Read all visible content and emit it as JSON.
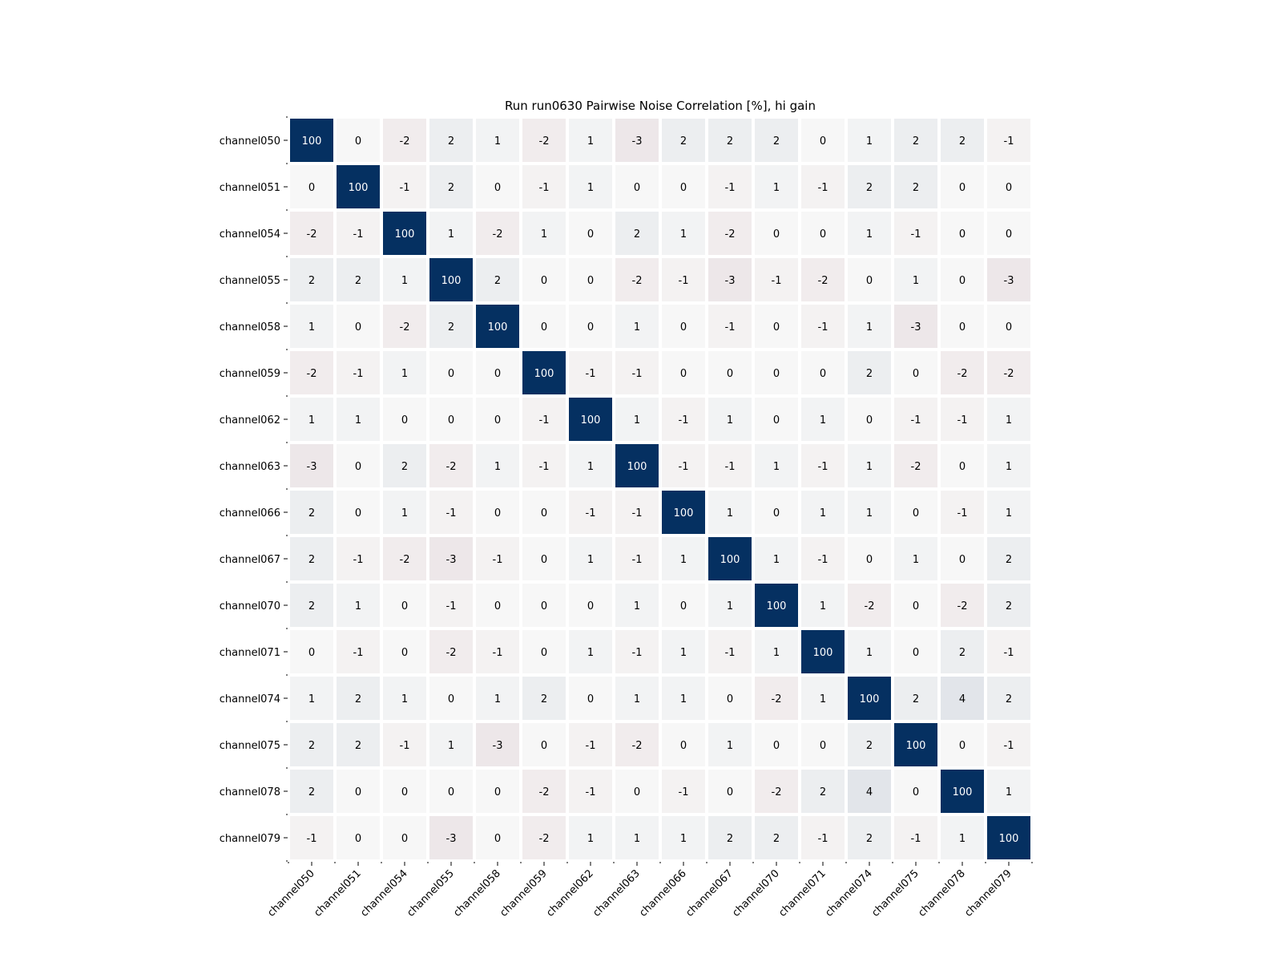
{
  "chart_data": {
    "type": "heatmap",
    "title": "Run run0630 Pairwise Noise Correlation [%], hi gain",
    "xlabel": "",
    "ylabel": "",
    "row_labels": [
      "channel050",
      "channel051",
      "channel054",
      "channel055",
      "channel058",
      "channel059",
      "channel062",
      "channel063",
      "channel066",
      "channel067",
      "channel070",
      "channel071",
      "channel074",
      "channel075",
      "channel078",
      "channel079"
    ],
    "col_labels": [
      "channel050",
      "channel051",
      "channel054",
      "channel055",
      "channel058",
      "channel059",
      "channel062",
      "channel063",
      "channel066",
      "channel067",
      "channel070",
      "channel071",
      "channel074",
      "channel075",
      "channel078",
      "channel079"
    ],
    "values": [
      [
        100,
        0,
        -2,
        2,
        1,
        -2,
        1,
        -3,
        2,
        2,
        2,
        0,
        1,
        2,
        2,
        -1
      ],
      [
        0,
        100,
        -1,
        2,
        0,
        -1,
        1,
        0,
        0,
        -1,
        1,
        -1,
        2,
        2,
        0,
        0
      ],
      [
        -2,
        -1,
        100,
        1,
        -2,
        1,
        0,
        2,
        1,
        -2,
        0,
        0,
        1,
        -1,
        0,
        0
      ],
      [
        2,
        2,
        1,
        100,
        2,
        0,
        0,
        -2,
        -1,
        -3,
        -1,
        -2,
        0,
        1,
        0,
        -3
      ],
      [
        1,
        0,
        -2,
        2,
        100,
        0,
        0,
        1,
        0,
        -1,
        0,
        -1,
        1,
        -3,
        0,
        0
      ],
      [
        -2,
        -1,
        1,
        0,
        0,
        100,
        -1,
        -1,
        0,
        0,
        0,
        0,
        2,
        0,
        -2,
        -2
      ],
      [
        1,
        1,
        0,
        0,
        0,
        -1,
        100,
        1,
        -1,
        1,
        0,
        1,
        0,
        -1,
        -1,
        1
      ],
      [
        -3,
        0,
        2,
        -2,
        1,
        -1,
        1,
        100,
        -1,
        -1,
        1,
        -1,
        1,
        -2,
        0,
        1
      ],
      [
        2,
        0,
        1,
        -1,
        0,
        0,
        -1,
        -1,
        100,
        1,
        0,
        1,
        1,
        0,
        -1,
        1
      ],
      [
        2,
        -1,
        -2,
        -3,
        -1,
        0,
        1,
        -1,
        1,
        100,
        1,
        -1,
        0,
        1,
        0,
        2
      ],
      [
        2,
        1,
        0,
        -1,
        0,
        0,
        0,
        1,
        0,
        1,
        100,
        1,
        -2,
        0,
        -2,
        2
      ],
      [
        0,
        -1,
        0,
        -2,
        -1,
        0,
        1,
        -1,
        1,
        -1,
        1,
        100,
        1,
        0,
        2,
        -1
      ],
      [
        1,
        2,
        1,
        0,
        1,
        2,
        0,
        1,
        1,
        0,
        -2,
        1,
        100,
        2,
        4,
        2
      ],
      [
        2,
        2,
        -1,
        1,
        -3,
        0,
        -1,
        -2,
        0,
        1,
        0,
        0,
        2,
        100,
        0,
        -1
      ],
      [
        2,
        0,
        0,
        0,
        0,
        -2,
        -1,
        0,
        -1,
        0,
        -2,
        2,
        4,
        0,
        100,
        1
      ],
      [
        -1,
        0,
        0,
        -3,
        0,
        -2,
        1,
        1,
        1,
        2,
        2,
        -1,
        2,
        -1,
        1,
        100
      ]
    ],
    "colormap": "RdBu (diverging, centered at 0)",
    "color_max": "#053061",
    "color_mid": "#f7f7f7",
    "color_min": "#67001f",
    "vmin": -100,
    "vmax": 100,
    "grid": false,
    "legend": "none"
  }
}
